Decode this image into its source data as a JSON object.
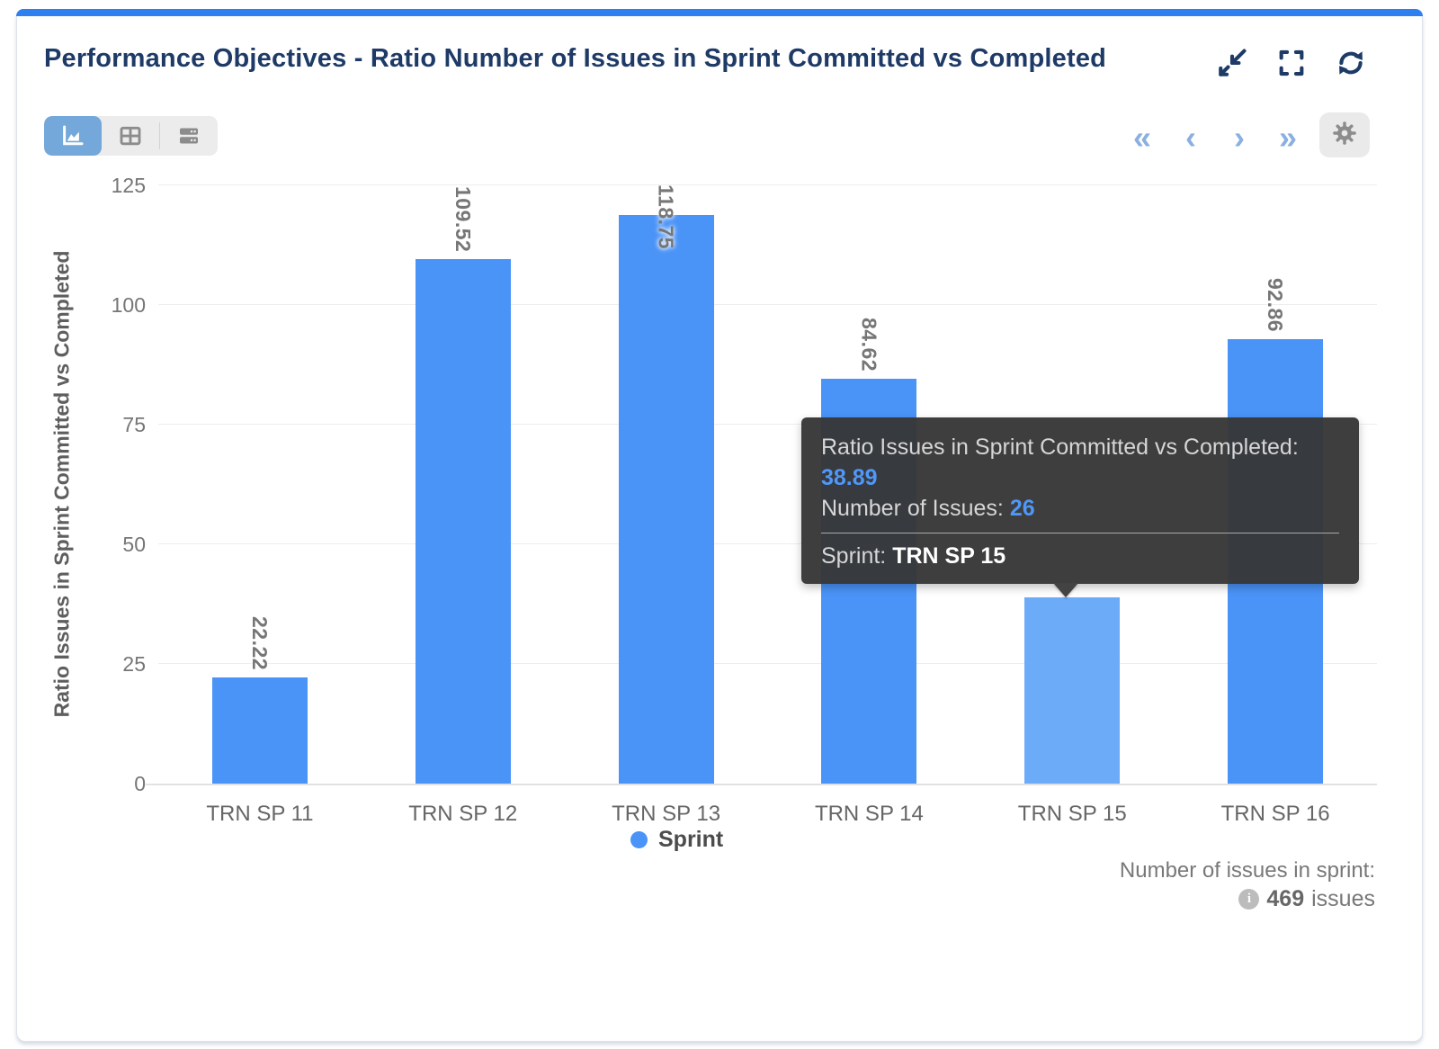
{
  "header": {
    "title": "Performance Objectives - Ratio Number of Issues in Sprint Committed vs Completed",
    "icons": [
      "minimize-icon",
      "fullscreen-icon",
      "refresh-icon"
    ]
  },
  "toolbar": {
    "view_toggles": [
      {
        "name": "chart-view",
        "icon": "area-chart-icon",
        "active": true
      },
      {
        "name": "table-view",
        "icon": "table-icon",
        "active": false
      },
      {
        "name": "list-view",
        "icon": "list-rows-icon",
        "active": false
      }
    ],
    "pagination": {
      "first": "«",
      "prev": "‹",
      "next": "›",
      "last": "»"
    },
    "settings_icon": "gear-icon"
  },
  "chart_data": {
    "type": "bar",
    "title": "Performance Objectives - Ratio Number of Issues in Sprint Committed vs Completed",
    "categories": [
      "TRN SP 11",
      "TRN SP 12",
      "TRN SP 13",
      "TRN SP 14",
      "TRN SP 15",
      "TRN SP 16"
    ],
    "values": [
      22.22,
      109.52,
      118.75,
      84.62,
      38.89,
      92.86
    ],
    "value_labels": [
      "22.22",
      "109.52",
      "118.75",
      "84.62",
      "38.89",
      "92.86"
    ],
    "hidden_value_label_indexes": [
      4
    ],
    "xlabel": "",
    "ylabel": "Ratio Issues in Sprint Committed vs Completed",
    "ylim": [
      0,
      125
    ],
    "yticks": [
      0,
      25,
      50,
      75,
      100,
      125
    ],
    "grid": true,
    "legend_position": "bottom",
    "legend": [
      {
        "label": "Sprint",
        "color": "#4a93f7"
      }
    ],
    "bar_color": "#4a93f7",
    "highlight_index": 4,
    "highlight_color": "#6cabf8"
  },
  "tooltip": {
    "metric_label": "Ratio Issues in Sprint Committed vs Completed:",
    "metric_value": "38.89",
    "issues_label": "Number of Issues:",
    "issues_value": "26",
    "sprint_label": "Sprint:",
    "sprint_value": "TRN SP 15"
  },
  "footer": {
    "label": "Number of issues in sprint:",
    "info_icon": "info-circle-icon",
    "info_glyph": "i",
    "count": "469",
    "unit": "issues"
  },
  "colors": {
    "accent_top_bar": "#2e7ff0",
    "title_text": "#1e3a66",
    "bar": "#4a93f7",
    "bar_highlight": "#6cabf8",
    "pagination_arrows": "#8bb0e0",
    "tooltip_background": "#363636",
    "tooltip_value_blue": "#4f97f8",
    "axis_text": "#767676"
  }
}
